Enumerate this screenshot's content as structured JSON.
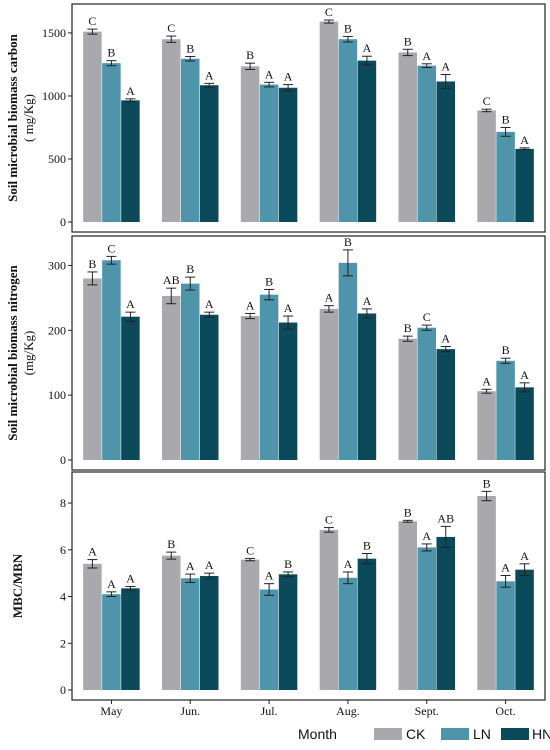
{
  "legend": {
    "title": "Month",
    "items": [
      {
        "label": "CK",
        "color": "#a9a8ad"
      },
      {
        "label": "LN",
        "color": "#4e94aa"
      },
      {
        "label": "HN",
        "color": "#0b4a5a"
      }
    ]
  },
  "chart_data": [
    {
      "type": "bar",
      "ylabel_line1": "Soil microbial biomass carbon",
      "ylabel_line2": "( mg/Kg)",
      "ylim": [
        0,
        1650
      ],
      "yticks": [
        0,
        500,
        1000,
        1500
      ],
      "categories": [
        "May",
        "Jun.",
        "Jul.",
        "Aug.",
        "Sept.",
        "Oct."
      ],
      "series": [
        {
          "name": "CK",
          "values": [
            1510,
            1450,
            1235,
            1590,
            1345,
            885
          ],
          "errors": [
            20,
            25,
            25,
            12,
            25,
            10
          ],
          "letters": [
            "C",
            "C",
            "B",
            "C",
            "B",
            "C"
          ]
        },
        {
          "name": "LN",
          "values": [
            1260,
            1295,
            1090,
            1450,
            1240,
            715
          ],
          "errors": [
            20,
            18,
            18,
            22,
            15,
            35
          ],
          "letters": [
            "B",
            "B",
            "A",
            "B",
            "A",
            "B"
          ]
        },
        {
          "name": "HN",
          "values": [
            965,
            1085,
            1065,
            1280,
            1115,
            580
          ],
          "errors": [
            12,
            15,
            25,
            35,
            55,
            8
          ],
          "letters": [
            "A",
            "A",
            "A",
            "A",
            "A",
            "A"
          ]
        }
      ]
    },
    {
      "type": "bar",
      "ylabel_line1": "Soil microbial biomass nitrogen",
      "ylabel_line2": "(mg/Kg)",
      "ylim": [
        0,
        330
      ],
      "yticks": [
        0,
        100,
        200,
        300
      ],
      "categories": [
        "May",
        "Jun.",
        "Jul.",
        "Aug.",
        "Sept.",
        "Oct."
      ],
      "series": [
        {
          "name": "CK",
          "values": [
            280,
            253,
            222,
            233,
            187,
            106
          ],
          "errors": [
            10,
            12,
            4,
            5,
            4,
            3
          ],
          "letters": [
            "B",
            "AB",
            "A",
            "A",
            "B",
            "A"
          ]
        },
        {
          "name": "LN",
          "values": [
            308,
            272,
            255,
            304,
            204,
            153
          ],
          "errors": [
            6,
            10,
            8,
            20,
            4,
            4
          ],
          "letters": [
            "C",
            "B",
            "B",
            "B",
            "C",
            "B"
          ]
        },
        {
          "name": "HN",
          "values": [
            221,
            224,
            212,
            226,
            171,
            112
          ],
          "errors": [
            7,
            4,
            10,
            7,
            4,
            7
          ],
          "letters": [
            "A",
            "A",
            "A",
            "A",
            "A",
            "A"
          ]
        }
      ]
    },
    {
      "type": "bar",
      "ylabel_line1": "MBC/MBN",
      "ylabel_line2": "",
      "ylim": [
        0,
        8.9
      ],
      "yticks": [
        0,
        2,
        4,
        6,
        8
      ],
      "categories": [
        "May",
        "Jun.",
        "Jul.",
        "Aug.",
        "Sept.",
        "Oct."
      ],
      "series": [
        {
          "name": "CK",
          "values": [
            5.4,
            5.75,
            5.58,
            6.85,
            7.22,
            8.3
          ],
          "errors": [
            0.18,
            0.15,
            0.05,
            0.1,
            0.04,
            0.2
          ],
          "letters": [
            "A",
            "B",
            "C",
            "C",
            "B",
            "B"
          ]
        },
        {
          "name": "LN",
          "values": [
            4.1,
            4.78,
            4.3,
            4.8,
            6.1,
            4.65
          ],
          "errors": [
            0.1,
            0.18,
            0.25,
            0.25,
            0.15,
            0.25
          ],
          "letters": [
            "A",
            "A",
            "A",
            "A",
            "A",
            "A"
          ]
        },
        {
          "name": "HN",
          "values": [
            4.35,
            4.88,
            4.95,
            5.62,
            6.55,
            5.15
          ],
          "errors": [
            0.08,
            0.12,
            0.1,
            0.22,
            0.45,
            0.25
          ],
          "letters": [
            "A",
            "A",
            "B",
            "B",
            "AB",
            "A"
          ]
        }
      ]
    }
  ]
}
